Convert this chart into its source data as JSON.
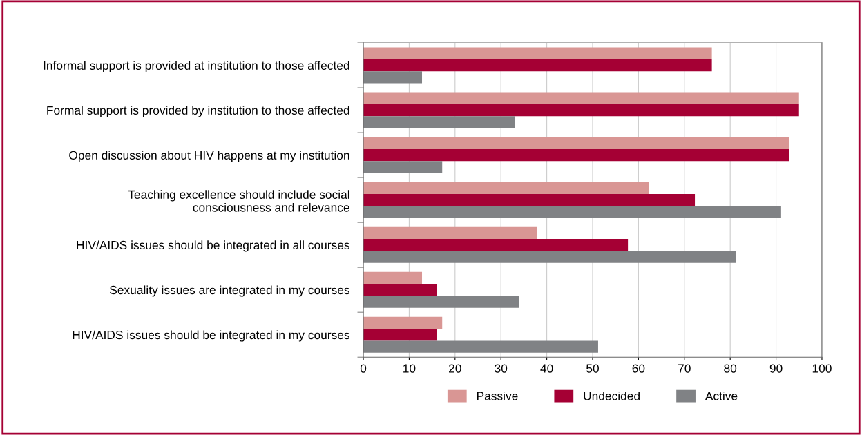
{
  "chart_data": {
    "type": "bar",
    "orientation": "horizontal",
    "categories": [
      "Informal support is provided at institution to those affected",
      "Formal support is provided by institution to those affected",
      "Open discussion about HIV happens at my institution",
      "Teaching excellence should include social\nconsciousness and relevance",
      "HIV/AIDS issues should be integrated in all courses",
      "Sexuality issues are integrated in my courses",
      "HIV/AIDS issues should be integrated in my courses"
    ],
    "series": [
      {
        "name": "Passive",
        "color": "#d99694",
        "values": [
          76,
          95,
          92.8,
          62.2,
          37.8,
          12.8,
          17.2
        ]
      },
      {
        "name": "Undecided",
        "color": "#a50034",
        "values": [
          76,
          95,
          92.8,
          72.3,
          57.7,
          16.1,
          16.1
        ]
      },
      {
        "name": "Active",
        "color": "#808285",
        "values": [
          12.8,
          33,
          17.2,
          91.1,
          81.2,
          33.9,
          51.2
        ]
      }
    ],
    "xlim": [
      0,
      100
    ],
    "xticks": [
      0,
      10,
      20,
      30,
      40,
      50,
      60,
      70,
      80,
      90,
      100
    ],
    "grid": "x",
    "legend": "bottom"
  }
}
